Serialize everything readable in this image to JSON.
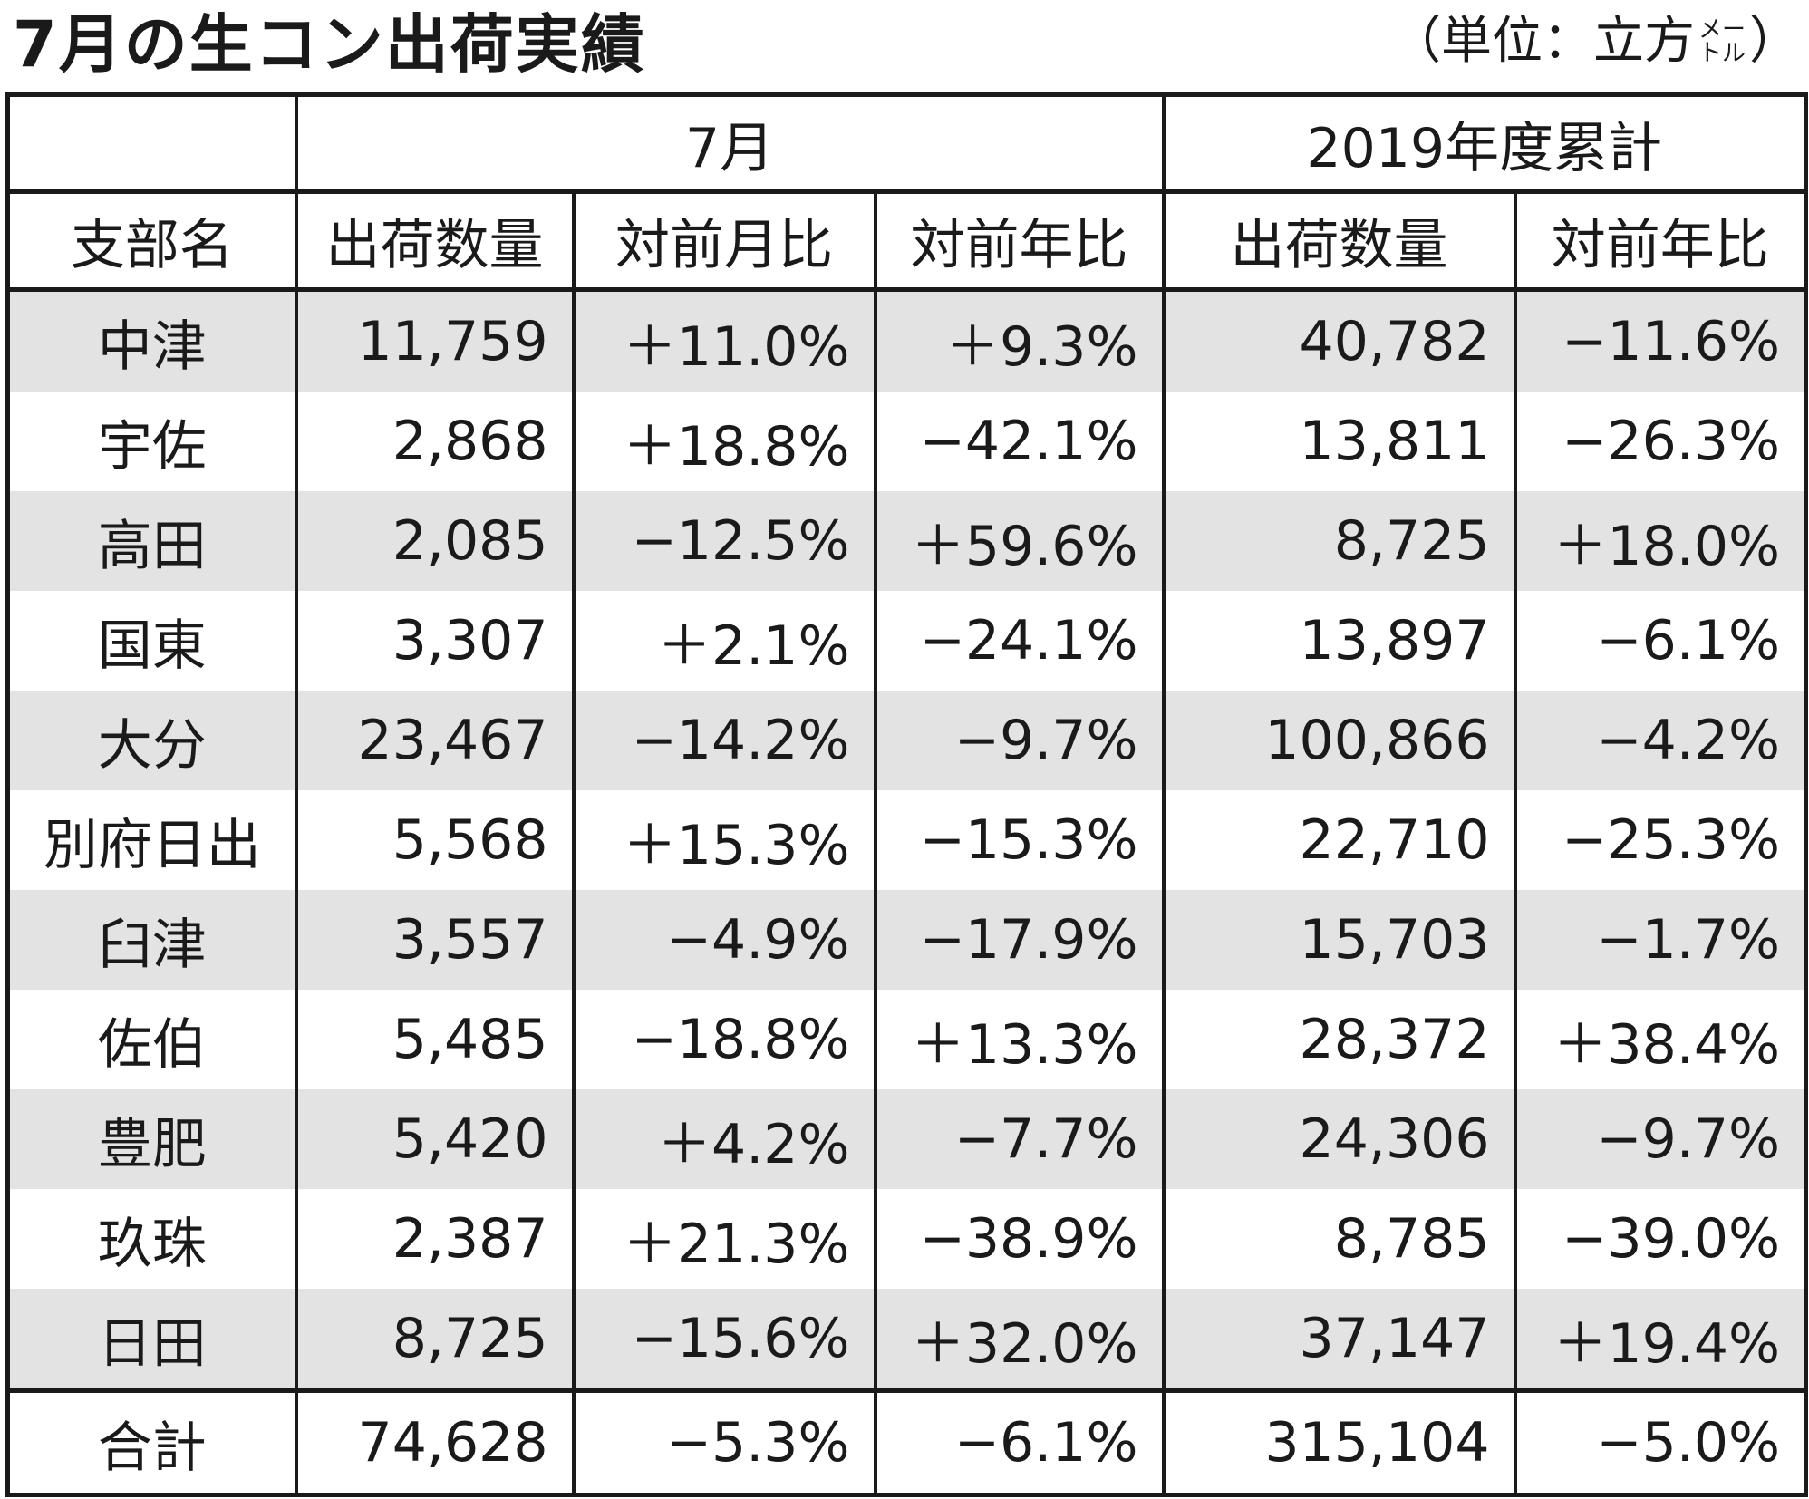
{
  "title": "7月の生コン出荷実績",
  "unit": {
    "prefix": "（単位：立方",
    "small_top": "メー",
    "small_bottom": "トル",
    "suffix": "）"
  },
  "chart_data": {
    "type": "table",
    "title": "7月の生コン出荷実績",
    "group_headers": [
      "",
      "7月",
      "2019年度累計"
    ],
    "columns": [
      "支部名",
      "出荷数量",
      "対前月比",
      "対前年比",
      "出荷数量",
      "対前年比"
    ],
    "rows": [
      [
        "中津",
        "11,759",
        "＋11.0%",
        "＋9.3%",
        "40,782",
        "−11.6%"
      ],
      [
        "宇佐",
        "2,868",
        "＋18.8%",
        "−42.1%",
        "13,811",
        "−26.3%"
      ],
      [
        "高田",
        "2,085",
        "−12.5%",
        "＋59.6%",
        "8,725",
        "＋18.0%"
      ],
      [
        "国東",
        "3,307",
        "＋2.1%",
        "−24.1%",
        "13,897",
        "−6.1%"
      ],
      [
        "大分",
        "23,467",
        "−14.2%",
        "−9.7%",
        "100,866",
        "−4.2%"
      ],
      [
        "別府日出",
        "5,568",
        "＋15.3%",
        "−15.3%",
        "22,710",
        "−25.3%"
      ],
      [
        "臼津",
        "3,557",
        "−4.9%",
        "−17.9%",
        "15,703",
        "−1.7%"
      ],
      [
        "佐伯",
        "5,485",
        "−18.8%",
        "＋13.3%",
        "28,372",
        "＋38.4%"
      ],
      [
        "豊肥",
        "5,420",
        "＋4.2%",
        "−7.7%",
        "24,306",
        "−9.7%"
      ],
      [
        "玖珠",
        "2,387",
        "＋21.3%",
        "−38.9%",
        "8,785",
        "−39.0%"
      ],
      [
        "日田",
        "8,725",
        "−15.6%",
        "＋32.0%",
        "37,147",
        "＋19.4%"
      ]
    ],
    "total": [
      "合計",
      "74,628",
      "−5.3%",
      "−6.1%",
      "315,104",
      "−5.0%"
    ],
    "row_shading": "#e3e3e3"
  }
}
